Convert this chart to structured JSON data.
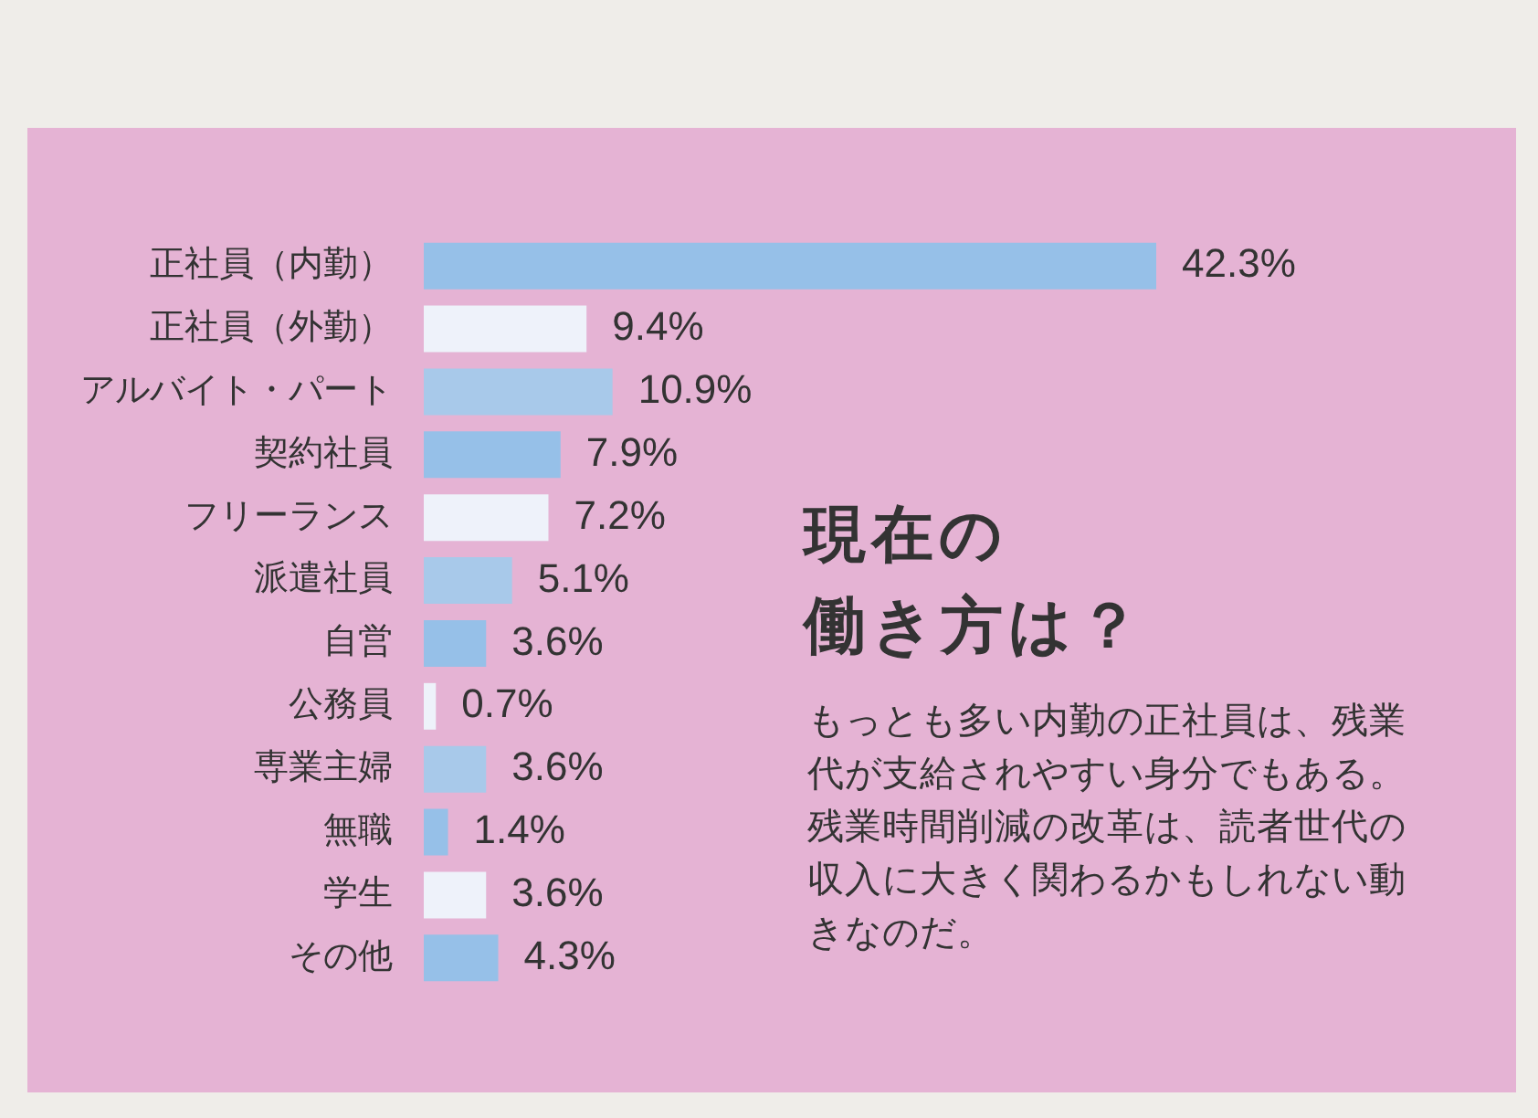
{
  "chart_data": {
    "type": "bar",
    "orientation": "horizontal",
    "title": "現在の",
    "subtitle": "働き方は？",
    "categories": [
      "正社員（内勤）",
      "正社員（外勤）",
      "アルバイト・パート",
      "契約社員",
      "フリーランス",
      "派遣社員",
      "自営",
      "公務員",
      "専業主婦",
      "無職",
      "学生",
      "その他"
    ],
    "values": [
      42.3,
      9.4,
      10.9,
      7.9,
      7.2,
      5.1,
      3.6,
      0.7,
      3.6,
      1.4,
      3.6,
      4.3
    ],
    "value_labels": [
      "42.3%",
      "9.4%",
      "10.9%",
      "7.9%",
      "7.2%",
      "5.1%",
      "3.6%",
      "0.7%",
      "3.6%",
      "1.4%",
      "3.6%",
      "4.3%"
    ],
    "colors": [
      "#96c0e8",
      "#eef2fa",
      "#a8c9ea",
      "#96c0e8",
      "#eef2fa",
      "#a8c9ea",
      "#96c0e8",
      "#eef2fa",
      "#a8c9ea",
      "#96c0e8",
      "#eef2fa",
      "#96c0e8"
    ],
    "annotations": [
      "もっとも多い内勤の正社員は、残業代が支給されやすい身分でもある。残業時間削減の改革は、読者世代の収入に大きく関わるかもしれない動きなのだ。"
    ],
    "tick_labels": "y",
    "legend": false
  }
}
